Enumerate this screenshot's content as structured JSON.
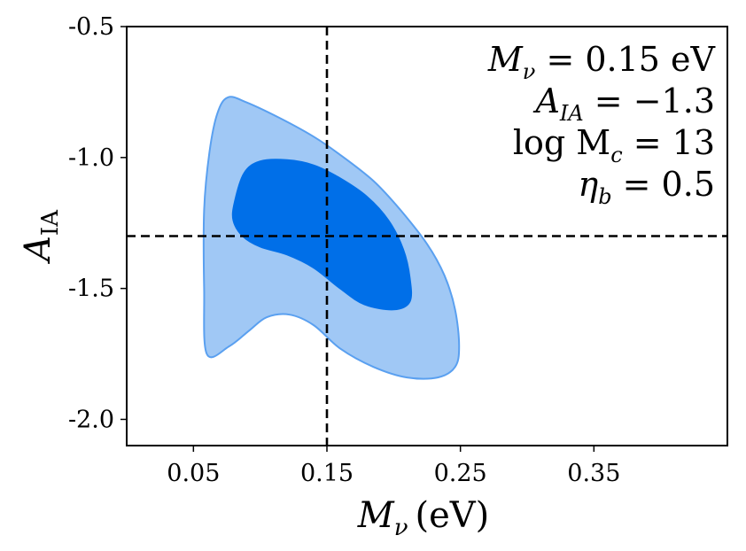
{
  "chart_data": {
    "type": "contour",
    "xlabel": "M",
    "xlabel_sub": "ν",
    "xlabel_unit": "(eV)",
    "ylabel": "A",
    "ylabel_sub": "IA",
    "xlim": [
      0.0,
      0.45
    ],
    "ylim": [
      -2.1,
      -0.5
    ],
    "xticks": [
      0.05,
      0.15,
      0.25,
      0.35
    ],
    "xtick_labels": [
      "0.05",
      "0.15",
      "0.25",
      "0.35"
    ],
    "yticks": [
      -0.5,
      -1.0,
      -1.5,
      -2.0
    ],
    "ytick_labels": [
      "-0.5",
      "-1.0",
      "-1.5",
      "-2.0"
    ],
    "fiducial": {
      "x": 0.15,
      "y": -1.3
    },
    "contours": [
      {
        "level": "outer",
        "color": "#a0c8f5",
        "edge_color": "#5aa0f0",
        "points": [
          [
            0.06,
            -1.75
          ],
          [
            0.058,
            -1.5
          ],
          [
            0.058,
            -1.2
          ],
          [
            0.062,
            -0.98
          ],
          [
            0.068,
            -0.83
          ],
          [
            0.076,
            -0.77
          ],
          [
            0.09,
            -0.79
          ],
          [
            0.115,
            -0.85
          ],
          [
            0.14,
            -0.92
          ],
          [
            0.16,
            -0.99
          ],
          [
            0.185,
            -1.09
          ],
          [
            0.205,
            -1.2
          ],
          [
            0.225,
            -1.33
          ],
          [
            0.238,
            -1.45
          ],
          [
            0.246,
            -1.58
          ],
          [
            0.249,
            -1.72
          ],
          [
            0.246,
            -1.8
          ],
          [
            0.233,
            -1.84
          ],
          [
            0.21,
            -1.84
          ],
          [
            0.185,
            -1.8
          ],
          [
            0.16,
            -1.73
          ],
          [
            0.14,
            -1.64
          ],
          [
            0.122,
            -1.6
          ],
          [
            0.105,
            -1.61
          ],
          [
            0.092,
            -1.66
          ],
          [
            0.077,
            -1.72
          ]
        ]
      },
      {
        "level": "inner",
        "color": "#006fe8",
        "edge_color": "#006fe8",
        "points": [
          [
            0.081,
            -1.17
          ],
          [
            0.088,
            -1.06
          ],
          [
            0.1,
            -1.015
          ],
          [
            0.12,
            -1.01
          ],
          [
            0.14,
            -1.03
          ],
          [
            0.16,
            -1.08
          ],
          [
            0.18,
            -1.15
          ],
          [
            0.196,
            -1.24
          ],
          [
            0.207,
            -1.35
          ],
          [
            0.212,
            -1.46
          ],
          [
            0.212,
            -1.55
          ],
          [
            0.2,
            -1.58
          ],
          [
            0.178,
            -1.56
          ],
          [
            0.16,
            -1.5
          ],
          [
            0.14,
            -1.42
          ],
          [
            0.12,
            -1.37
          ],
          [
            0.1,
            -1.34
          ],
          [
            0.087,
            -1.3
          ],
          [
            0.08,
            -1.24
          ]
        ]
      }
    ],
    "annotations": [
      {
        "main": "M",
        "sub": "ν",
        "rest": " = 0.15 eV"
      },
      {
        "main": "A",
        "sub": "IA",
        "rest": " = −1.3"
      },
      {
        "main": "log M",
        "sub": "c",
        "rest": " = 13"
      },
      {
        "main": "η",
        "sub": "b",
        "rest": " = 0.5"
      }
    ]
  }
}
